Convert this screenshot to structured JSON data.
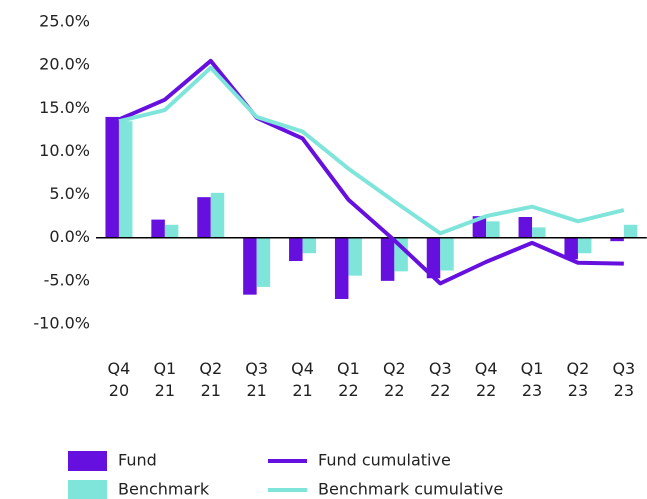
{
  "chart_data": {
    "type": "bar-line",
    "categories": [
      [
        "Q4",
        "20"
      ],
      [
        "Q1",
        "21"
      ],
      [
        "Q2",
        "21"
      ],
      [
        "Q3",
        "21"
      ],
      [
        "Q4",
        "21"
      ],
      [
        "Q1",
        "22"
      ],
      [
        "Q2",
        "22"
      ],
      [
        "Q3",
        "22"
      ],
      [
        "Q4",
        "22"
      ],
      [
        "Q1",
        "23"
      ],
      [
        "Q2",
        "23"
      ],
      [
        "Q3",
        "23"
      ]
    ],
    "series": [
      {
        "name": "Fund",
        "kind": "bar",
        "color": "#6610e0",
        "values": [
          14.0,
          2.1,
          4.7,
          -6.6,
          -2.7,
          -7.1,
          -5.0,
          -4.7,
          2.5,
          2.4,
          -2.5,
          -0.4
        ]
      },
      {
        "name": "Benchmark",
        "kind": "bar",
        "color": "#7fe5db",
        "values": [
          13.5,
          1.5,
          5.2,
          -5.7,
          -1.8,
          -4.4,
          -3.9,
          -3.8,
          1.9,
          1.2,
          -1.8,
          1.5
        ]
      },
      {
        "name": "Fund cumulative",
        "kind": "line",
        "color": "#6610e0",
        "values": [
          13.7,
          16.0,
          20.5,
          13.9,
          11.5,
          4.4,
          -0.3,
          -5.3,
          -2.8,
          -0.6,
          -2.9,
          -3.0
        ]
      },
      {
        "name": "Benchmark cumulative",
        "kind": "line",
        "color": "#7fe5db",
        "values": [
          13.5,
          14.8,
          19.7,
          14.0,
          12.3,
          8.0,
          4.2,
          0.5,
          2.5,
          3.6,
          1.9,
          3.2
        ]
      }
    ],
    "ylim": [
      -10,
      25
    ],
    "yticks": [
      {
        "value": -10,
        "label": "-10.0%"
      },
      {
        "value": -5,
        "label": "-5.0%"
      },
      {
        "value": 0,
        "label": "0.0%"
      },
      {
        "value": 5,
        "label": "5.0%"
      },
      {
        "value": 10,
        "label": "10.0%"
      },
      {
        "value": 15,
        "label": "15.0%"
      },
      {
        "value": 20,
        "label": "20.0%"
      },
      {
        "value": 25,
        "label": "25.0%"
      }
    ],
    "grid": false,
    "legend": "bottom"
  }
}
